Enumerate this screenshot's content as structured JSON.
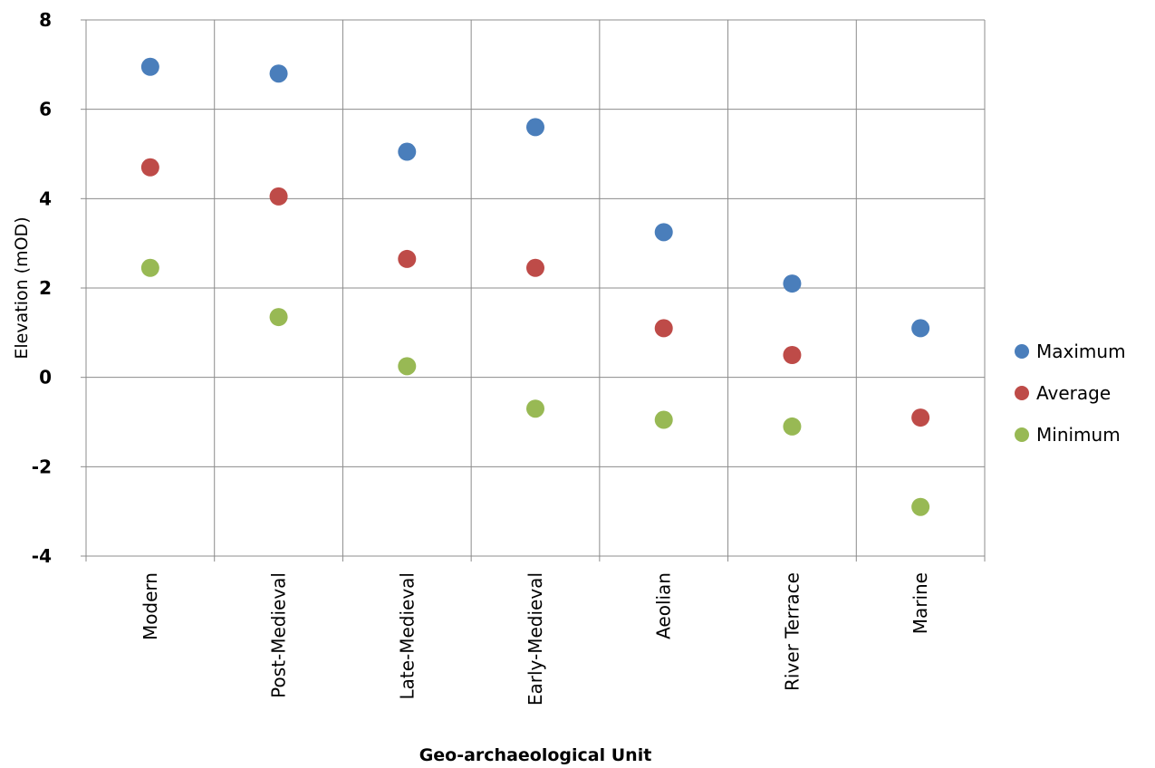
{
  "chart_data": {
    "type": "scatter",
    "title": "",
    "xlabel": "Geo-archaeological Unit",
    "ylabel": "Elevation (mOD)",
    "ylim": [
      -4,
      8
    ],
    "yticks": [
      8,
      6,
      4,
      2,
      0,
      -2,
      -4
    ],
    "categories": [
      "Modern",
      "Post-Medieval",
      "Late-Medieval",
      "Early-Medieval",
      "Aeolian",
      "River Terrace",
      "Marine"
    ],
    "grid": true,
    "legend_position": "right",
    "series": [
      {
        "name": "Maximum",
        "color": "#4a7ebb",
        "values": [
          6.95,
          6.8,
          5.05,
          5.6,
          3.25,
          2.1,
          1.1
        ]
      },
      {
        "name": "Average",
        "color": "#be4b48",
        "values": [
          4.7,
          4.05,
          2.65,
          2.45,
          1.1,
          0.5,
          -0.9
        ]
      },
      {
        "name": "Minimum",
        "color": "#98b954",
        "values": [
          2.45,
          1.35,
          0.25,
          -0.7,
          -0.95,
          -1.1,
          -2.9
        ]
      }
    ]
  }
}
